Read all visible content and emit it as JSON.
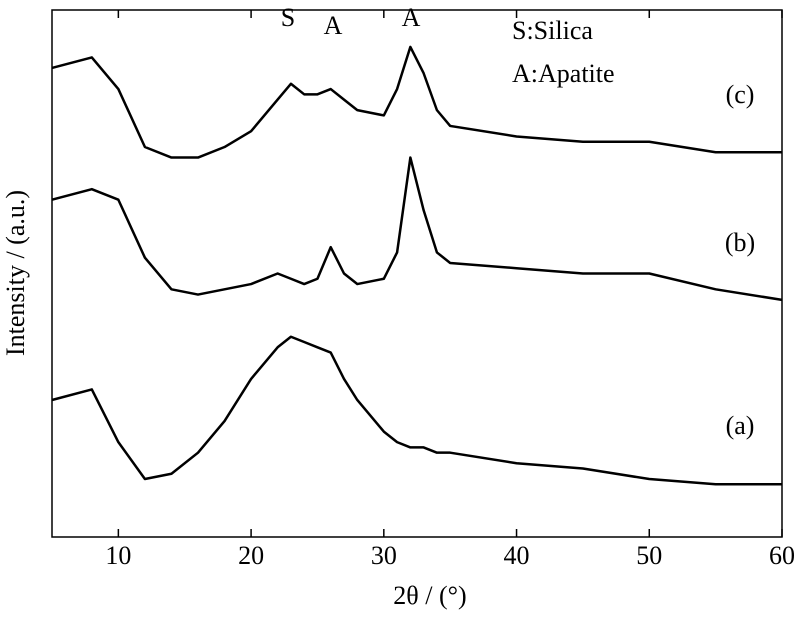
{
  "chart_data": {
    "type": "line",
    "xlabel": "2θ / (°)",
    "ylabel": "Intensity / (a.u.)",
    "x": [
      5,
      8,
      10,
      12,
      14,
      16,
      18,
      20,
      22,
      23,
      24,
      25,
      26,
      27,
      28,
      30,
      31,
      32,
      33,
      34,
      35,
      40,
      45,
      50,
      55,
      60
    ],
    "series": [
      {
        "name": "(a)",
        "color": "#000000",
        "values": [
          26,
          28,
          18,
          11,
          12,
          16,
          22,
          30,
          36,
          38,
          37,
          36,
          35,
          30,
          26,
          20,
          18,
          17,
          17,
          16,
          16,
          14,
          13,
          11,
          10,
          10
        ]
      },
      {
        "name": "(b)",
        "color": "#000000",
        "values": [
          64,
          66,
          64,
          53,
          47,
          46,
          47,
          48,
          50,
          49,
          48,
          49,
          55,
          50,
          48,
          49,
          54,
          72,
          62,
          54,
          52,
          51,
          50,
          50,
          47,
          45
        ]
      },
      {
        "name": "(c)",
        "color": "#000000",
        "values": [
          89,
          91,
          85,
          74,
          72,
          72,
          74,
          77,
          83,
          86,
          84,
          84,
          85,
          83,
          81,
          80,
          85,
          93,
          88,
          81,
          78,
          76,
          75,
          75,
          73,
          73
        ]
      }
    ],
    "peak_labels": [
      "S",
      "A",
      "A"
    ],
    "notes": [
      "S:Silica",
      "A:Apatite"
    ],
    "xlim": [
      5,
      60
    ],
    "xticks": [
      10,
      20,
      30,
      40,
      50,
      60
    ],
    "ylim": [
      0,
      100
    ]
  }
}
